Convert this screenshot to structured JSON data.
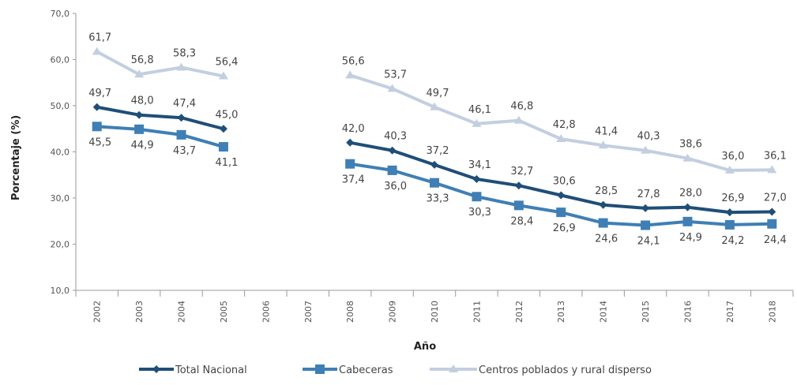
{
  "chart_data": {
    "type": "line",
    "xlabel": "Año",
    "ylabel": "Porcentaje (%)",
    "ylim": [
      10,
      70
    ],
    "yticks": [
      "10,0",
      "20,0",
      "30,0",
      "40,0",
      "50,0",
      "60,0",
      "70,0"
    ],
    "categories": [
      "2002",
      "2003",
      "2004",
      "2005",
      "2006",
      "2007",
      "2008",
      "2009",
      "2010",
      "2011",
      "2012",
      "2013",
      "2014",
      "2015",
      "2016",
      "2017",
      "2018"
    ],
    "legend_position": "bottom",
    "grid": false,
    "series": [
      {
        "name": "Total Nacional",
        "color": "#1f4e79",
        "marker": "diamond",
        "values": [
          49.7,
          48.0,
          47.4,
          45.0,
          null,
          null,
          42.0,
          40.3,
          37.2,
          34.1,
          32.7,
          30.6,
          28.5,
          27.8,
          28.0,
          26.9,
          27.0
        ],
        "labels": [
          "49,7",
          "48,0",
          "47,4",
          "45,0",
          null,
          null,
          "42,0",
          "40,3",
          "37,2",
          "34,1",
          "32,7",
          "30,6",
          "28,5",
          "27,8",
          "28,0",
          "26,9",
          "27,0"
        ]
      },
      {
        "name": "Cabeceras",
        "color": "#3f7fb5",
        "marker": "square",
        "values": [
          45.5,
          44.9,
          43.7,
          41.1,
          null,
          null,
          37.4,
          36.0,
          33.3,
          30.3,
          28.4,
          26.9,
          24.6,
          24.1,
          24.9,
          24.2,
          24.4
        ],
        "labels": [
          "45,5",
          "44,9",
          "43,7",
          "41,1",
          null,
          null,
          "37,4",
          "36,0",
          "33,3",
          "30,3",
          "28,4",
          "26,9",
          "24,6",
          "24,1",
          "24,9",
          "24,2",
          "24,4"
        ]
      },
      {
        "name": "Centros poblados y rural disperso",
        "color": "#c3cfe0",
        "marker": "triangle",
        "values": [
          61.7,
          56.8,
          58.3,
          56.4,
          null,
          null,
          56.6,
          53.7,
          49.7,
          46.1,
          46.8,
          42.8,
          41.4,
          40.3,
          38.6,
          36.0,
          36.1
        ],
        "labels": [
          "61,7",
          "56,8",
          "58,3",
          "56,4",
          null,
          null,
          "56,6",
          "53,7",
          "49,7",
          "46,1",
          "46,8",
          "42,8",
          "41,4",
          "40,3",
          "38,6",
          "36,0",
          "36,1"
        ]
      }
    ]
  }
}
